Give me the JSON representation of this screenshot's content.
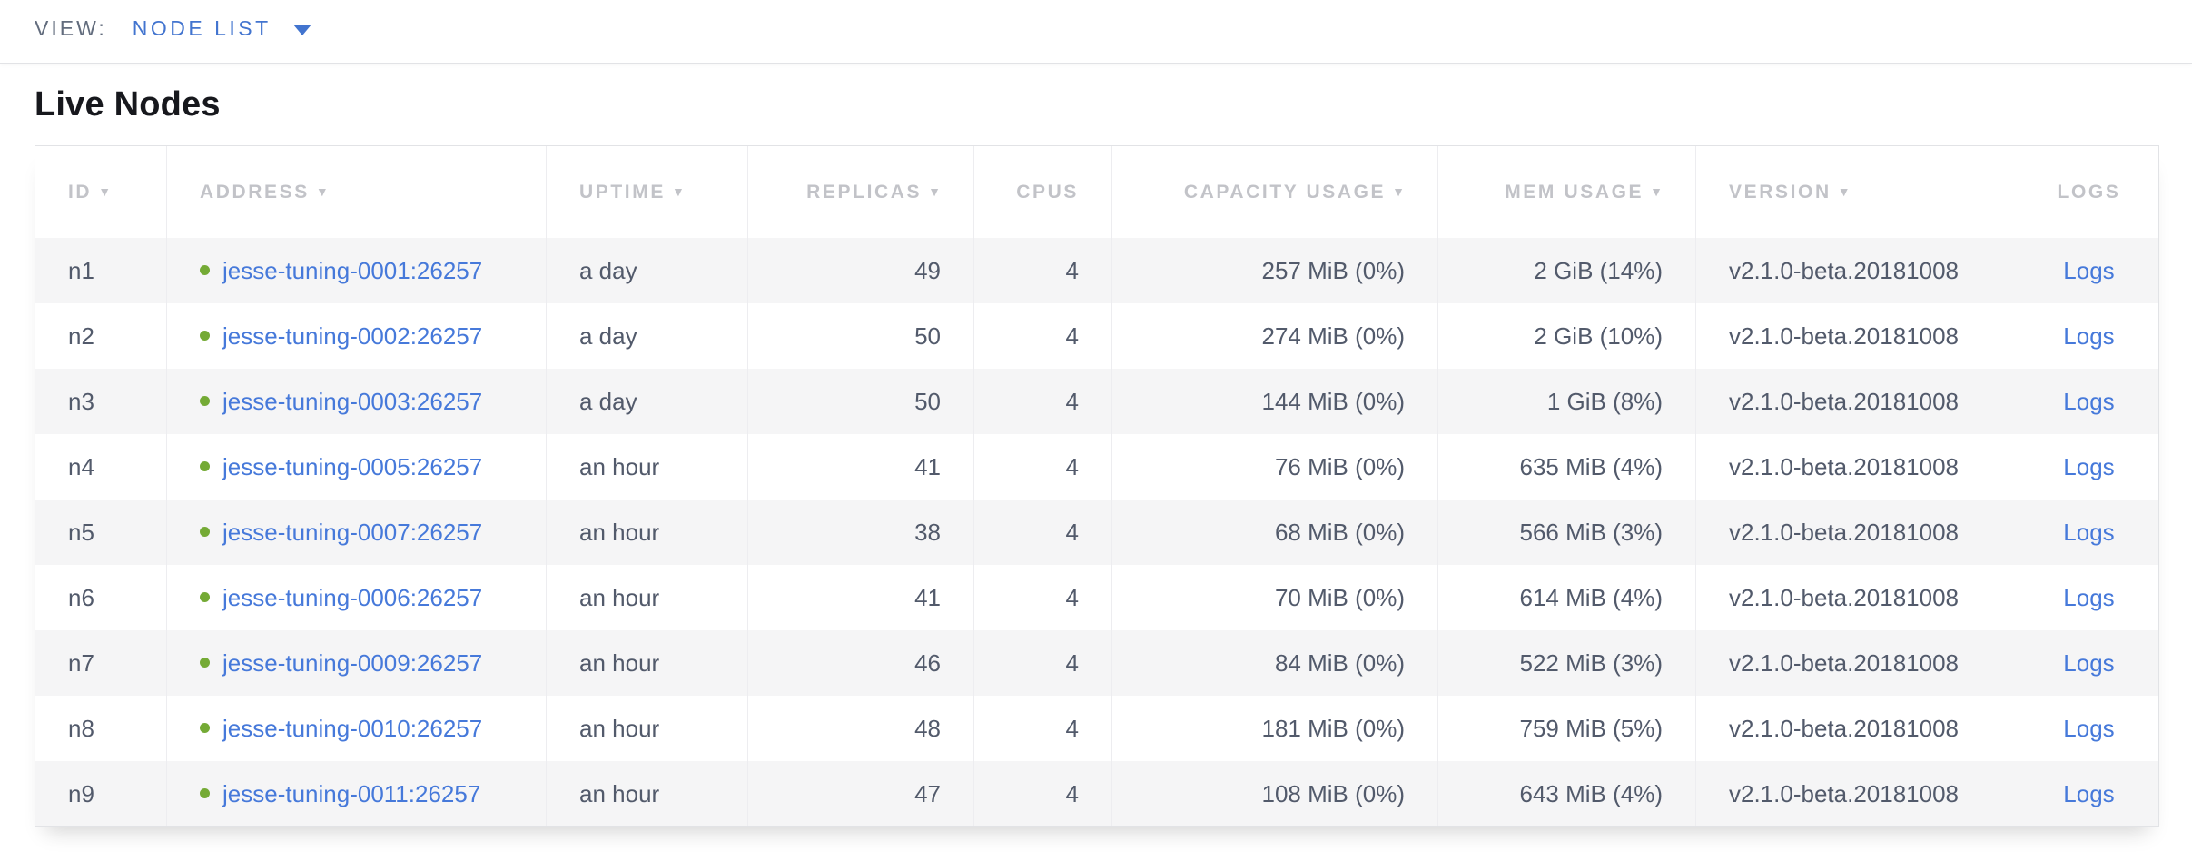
{
  "view_bar": {
    "label": "VIEW:",
    "selected": "NODE LIST"
  },
  "page_title": "Live Nodes",
  "table": {
    "columns": [
      {
        "key": "id",
        "label": "ID",
        "sortable": true,
        "align": "left"
      },
      {
        "key": "address",
        "label": "ADDRESS",
        "sortable": true,
        "align": "left"
      },
      {
        "key": "uptime",
        "label": "UPTIME",
        "sortable": true,
        "align": "left"
      },
      {
        "key": "replicas",
        "label": "REPLICAS",
        "sortable": true,
        "align": "right"
      },
      {
        "key": "cpus",
        "label": "CPUS",
        "sortable": false,
        "align": "right"
      },
      {
        "key": "capacity",
        "label": "CAPACITY USAGE",
        "sortable": true,
        "align": "right"
      },
      {
        "key": "mem",
        "label": "MEM USAGE",
        "sortable": true,
        "align": "right"
      },
      {
        "key": "version",
        "label": "VERSION",
        "sortable": true,
        "align": "left"
      },
      {
        "key": "logs",
        "label": "LOGS",
        "sortable": false,
        "align": "center"
      }
    ],
    "rows": [
      {
        "id": "n1",
        "address": "jesse-tuning-0001:26257",
        "uptime": "a day",
        "replicas": "49",
        "cpus": "4",
        "capacity": "257 MiB (0%)",
        "mem": "2 GiB (14%)",
        "version": "v2.1.0-beta.20181008",
        "logs": "Logs"
      },
      {
        "id": "n2",
        "address": "jesse-tuning-0002:26257",
        "uptime": "a day",
        "replicas": "50",
        "cpus": "4",
        "capacity": "274 MiB (0%)",
        "mem": "2 GiB (10%)",
        "version": "v2.1.0-beta.20181008",
        "logs": "Logs"
      },
      {
        "id": "n3",
        "address": "jesse-tuning-0003:26257",
        "uptime": "a day",
        "replicas": "50",
        "cpus": "4",
        "capacity": "144 MiB (0%)",
        "mem": "1 GiB (8%)",
        "version": "v2.1.0-beta.20181008",
        "logs": "Logs"
      },
      {
        "id": "n4",
        "address": "jesse-tuning-0005:26257",
        "uptime": "an hour",
        "replicas": "41",
        "cpus": "4",
        "capacity": "76 MiB (0%)",
        "mem": "635 MiB (4%)",
        "version": "v2.1.0-beta.20181008",
        "logs": "Logs"
      },
      {
        "id": "n5",
        "address": "jesse-tuning-0007:26257",
        "uptime": "an hour",
        "replicas": "38",
        "cpus": "4",
        "capacity": "68 MiB (0%)",
        "mem": "566 MiB (3%)",
        "version": "v2.1.0-beta.20181008",
        "logs": "Logs"
      },
      {
        "id": "n6",
        "address": "jesse-tuning-0006:26257",
        "uptime": "an hour",
        "replicas": "41",
        "cpus": "4",
        "capacity": "70 MiB (0%)",
        "mem": "614 MiB (4%)",
        "version": "v2.1.0-beta.20181008",
        "logs": "Logs"
      },
      {
        "id": "n7",
        "address": "jesse-tuning-0009:26257",
        "uptime": "an hour",
        "replicas": "46",
        "cpus": "4",
        "capacity": "84 MiB (0%)",
        "mem": "522 MiB (3%)",
        "version": "v2.1.0-beta.20181008",
        "logs": "Logs"
      },
      {
        "id": "n8",
        "address": "jesse-tuning-0010:26257",
        "uptime": "an hour",
        "replicas": "48",
        "cpus": "4",
        "capacity": "181 MiB (0%)",
        "mem": "759 MiB (5%)",
        "version": "v2.1.0-beta.20181008",
        "logs": "Logs"
      },
      {
        "id": "n9",
        "address": "jesse-tuning-0011:26257",
        "uptime": "an hour",
        "replicas": "47",
        "cpus": "4",
        "capacity": "108 MiB (0%)",
        "mem": "643 MiB (4%)",
        "version": "v2.1.0-beta.20181008",
        "logs": "Logs"
      }
    ]
  },
  "icons": {
    "sort_desc": "▼",
    "node_status": "green-dot",
    "view_dropdown": "chevron-down"
  },
  "colors": {
    "link_blue": "#4679da",
    "view_blue": "#4274cf",
    "status_green": "#74aa35",
    "header_gray": "#c2c3c8",
    "body_text": "#525a6b",
    "label_gray": "#626c7d",
    "row_alt": "#f5f5f6",
    "border": "#e2e3e6",
    "divider": "#ededf0"
  }
}
